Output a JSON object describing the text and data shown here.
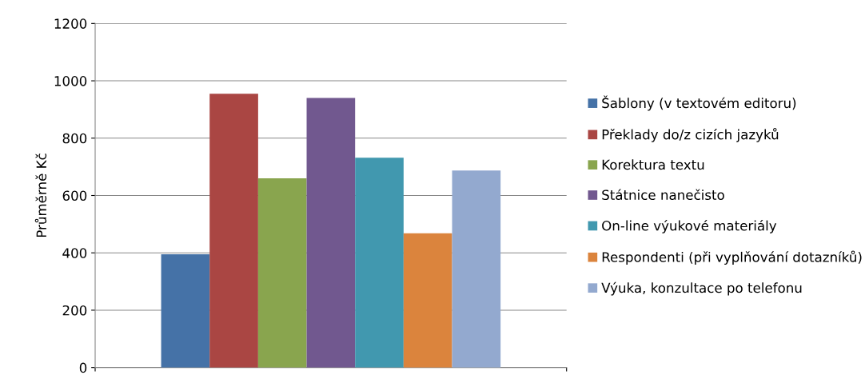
{
  "chart_data": {
    "type": "bar",
    "ylabel": "Průměrně Kč",
    "categories": [
      null
    ],
    "series": [
      {
        "name": "Šablony (v textovém editoru)",
        "color": "#4572a7",
        "values": [
          395
        ]
      },
      {
        "name": "Překlady do/z cizích jazyků",
        "color": "#aa4643",
        "values": [
          955
        ]
      },
      {
        "name": "Korektura textu",
        "color": "#89a54e",
        "values": [
          660
        ]
      },
      {
        "name": "Státnice nanečisto",
        "color": "#71588f",
        "values": [
          940
        ]
      },
      {
        "name": "On-line výukové materiály",
        "color": "#4198af",
        "values": [
          732
        ]
      },
      {
        "name": "Respondenti (při vyplňování dotazníků)",
        "color": "#db843d",
        "values": [
          468
        ]
      },
      {
        "name": "Výuka, konzultace po telefonu",
        "color": "#93a9cf",
        "values": [
          687
        ]
      }
    ],
    "ylim": [
      0,
      1200
    ],
    "yticks": [
      0,
      200,
      400,
      600,
      800,
      1000,
      1200
    ],
    "grid": "y",
    "legend": "right"
  }
}
